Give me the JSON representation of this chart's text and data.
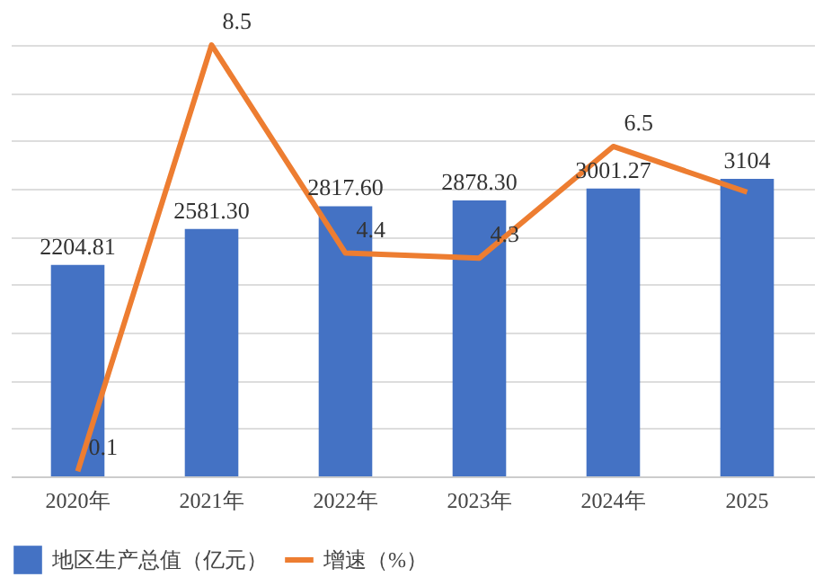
{
  "chart_data": {
    "type": "bar",
    "categories": [
      "2020年",
      "2021年",
      "2022年",
      "2023年",
      "2024年",
      "2025"
    ],
    "series": [
      {
        "name": "地区生产总值（亿元）",
        "color": "#4472c4",
        "values": [
          2204.81,
          2581.3,
          2817.6,
          2878.3,
          3001.27,
          3104
        ],
        "value_labels": [
          "2204.81",
          "2581.30",
          "2817.60",
          "2878.30",
          "3001.27",
          "3104"
        ]
      },
      {
        "name": "增速（%）",
        "type": "line",
        "axis": "y2",
        "color": "#ed7d31",
        "values": [
          0.1,
          8.5,
          4.4,
          4.3,
          6.5,
          5.6
        ],
        "value_labels": [
          "0.1",
          "8.5",
          "4.4",
          "4.3",
          "6.5",
          null
        ]
      }
    ],
    "ylim": [
      0,
      4500
    ],
    "yticks": [
      0,
      500,
      1000,
      1500,
      2000,
      2500,
      3000,
      3500,
      4000,
      4500
    ],
    "grid": "y",
    "legend": "bottom",
    "tick_labels": "x"
  }
}
